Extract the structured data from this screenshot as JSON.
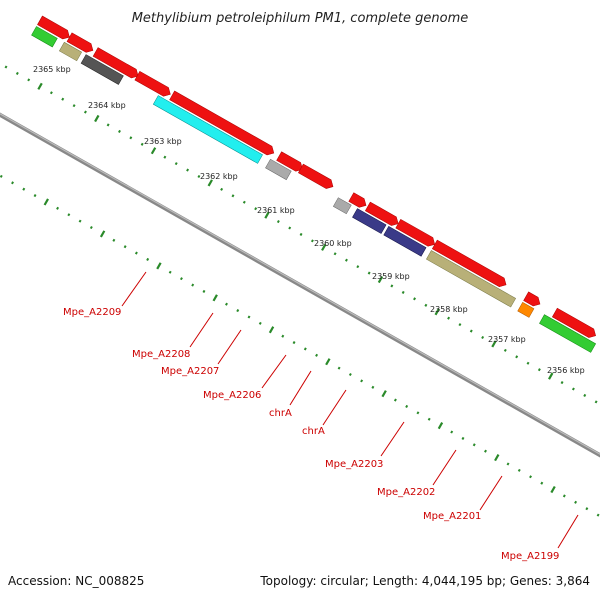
{
  "title": "Methylibium petroleiphilum PM1, complete genome",
  "accession": "Accession: NC_008825",
  "summary": "Topology: circular; Length: 4,044,195 bp; Genes: 3,864",
  "scale_labels": [
    "2365 kbp",
    "2364 kbp",
    "2363 kbp",
    "2362 kbp",
    "2361 kbp",
    "2360 kbp",
    "2359 kbp",
    "2358 kbp",
    "2357 kbp",
    "2356 kbp"
  ],
  "gene_labels": [
    "Mpe_A2209",
    "Mpe_A2208",
    "Mpe_A2207",
    "Mpe_A2206",
    "chrA",
    "chrA",
    "Mpe_A2203",
    "Mpe_A2202",
    "Mpe_A2201",
    "Mpe_A2199"
  ],
  "colors": {
    "red": "#ee1111",
    "gray": "#aaaaaa",
    "dark_gray": "#555555",
    "cyan": "#22eeee",
    "khaki": "#b8b078",
    "navy": "#3a3a88",
    "orange": "#ff8800",
    "green": "#33cc33",
    "blue": "#1111ee",
    "tick": "#2a8a2a",
    "label": "#cc0000"
  }
}
